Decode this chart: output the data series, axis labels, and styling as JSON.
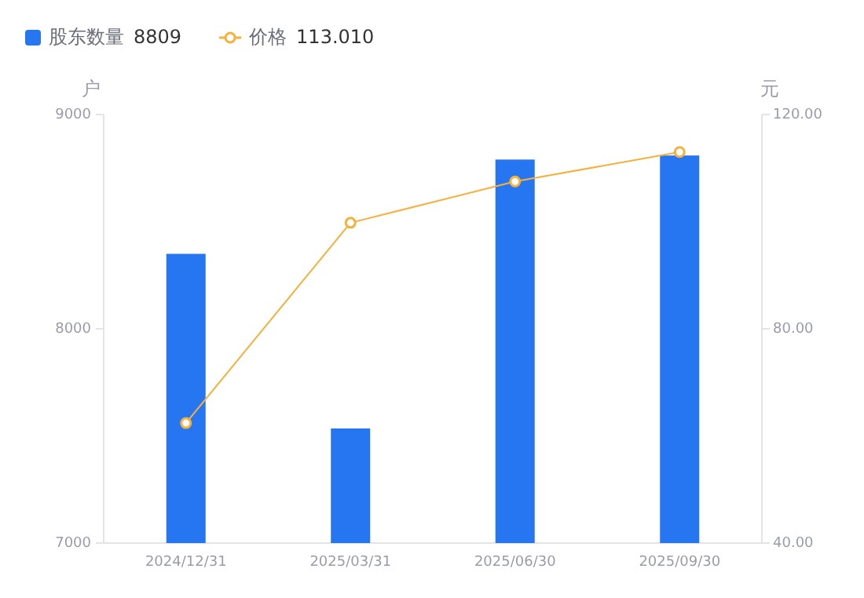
{
  "chart_data": {
    "type": "bar",
    "categories": [
      "2024/12/31",
      "2025/03/31",
      "2025/06/30",
      "2025/09/30"
    ],
    "series": [
      {
        "name": "股东数量",
        "color": "#2676f2",
        "values": [
          8350,
          7535,
          8790,
          8809
        ]
      },
      {
        "name": "价格",
        "type": "line",
        "axis": "y2",
        "color": "#f7b03c",
        "marker": "circle",
        "values": [
          62.4,
          99.8,
          107.5,
          113.01
        ]
      }
    ],
    "ylabel": "户",
    "y2label": "元",
    "ylim": [
      7000,
      9000
    ],
    "yticks": [
      7000,
      8000,
      9000
    ],
    "y2lim": [
      40,
      120
    ],
    "y2ticks": [
      {
        "value": 40,
        "label": "40.00"
      },
      {
        "value": 80,
        "label": "80.00"
      },
      {
        "value": 120,
        "label": "120.00"
      }
    ],
    "annotations": [
      "8809",
      "113.010"
    ],
    "legend": "top left"
  }
}
